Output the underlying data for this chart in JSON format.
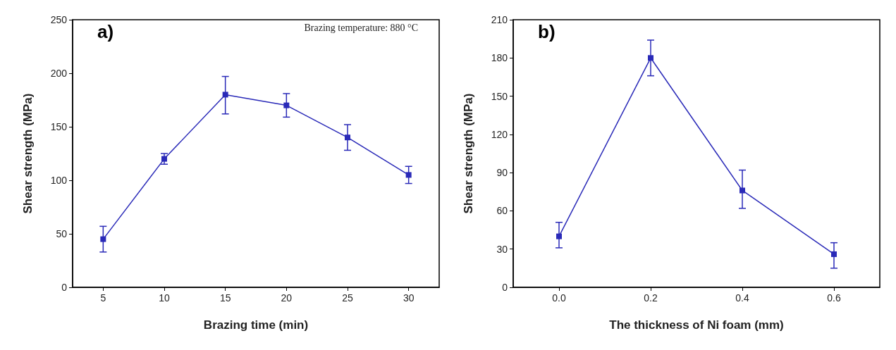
{
  "chart_data": [
    {
      "type": "line",
      "xlabel": "Brazing time (min)",
      "ylabel": "Shear strength (MPa)",
      "annotations": [
        "a)",
        "Brazing temperature: 880 °C"
      ],
      "marker": "square",
      "line_style": "solid",
      "grid": false,
      "xlim": [
        2.5,
        32.5
      ],
      "xticks": [
        5,
        10,
        15,
        20,
        25,
        30
      ],
      "ylim": [
        0,
        250
      ],
      "yticks": [
        0,
        50,
        100,
        150,
        200,
        250
      ],
      "series": [
        {
          "color": "#2a2ab8",
          "x": [
            5,
            10,
            15,
            20,
            25,
            30
          ],
          "values": [
            45,
            120,
            180,
            170,
            140,
            105
          ],
          "errors": [
            [
              33,
              57
            ],
            [
              115,
              125
            ],
            [
              162,
              197
            ],
            [
              159,
              181
            ],
            [
              128,
              152
            ],
            [
              97,
              113
            ]
          ]
        }
      ]
    },
    {
      "type": "line",
      "xlabel": "The thickness of Ni foam (mm)",
      "ylabel": "Shear strength (MPa)",
      "annotations": [
        "b)"
      ],
      "marker": "square",
      "line_style": "solid",
      "grid": false,
      "xlim": [
        -0.1,
        0.7
      ],
      "xticks": [
        {
          "value": 0,
          "label": "0.0"
        },
        0.2,
        0.4,
        0.6
      ],
      "ylim": [
        0,
        210
      ],
      "yticks": [
        0,
        30,
        60,
        90,
        120,
        150,
        180,
        210
      ],
      "series": [
        {
          "color": "#2a2ab8",
          "x": [
            0,
            0.2,
            0.4,
            0.6
          ],
          "values": [
            40,
            180,
            76,
            26
          ],
          "errors": [
            [
              31,
              51
            ],
            [
              166,
              194
            ],
            [
              62,
              92
            ],
            [
              15,
              35
            ]
          ]
        }
      ]
    }
  ]
}
